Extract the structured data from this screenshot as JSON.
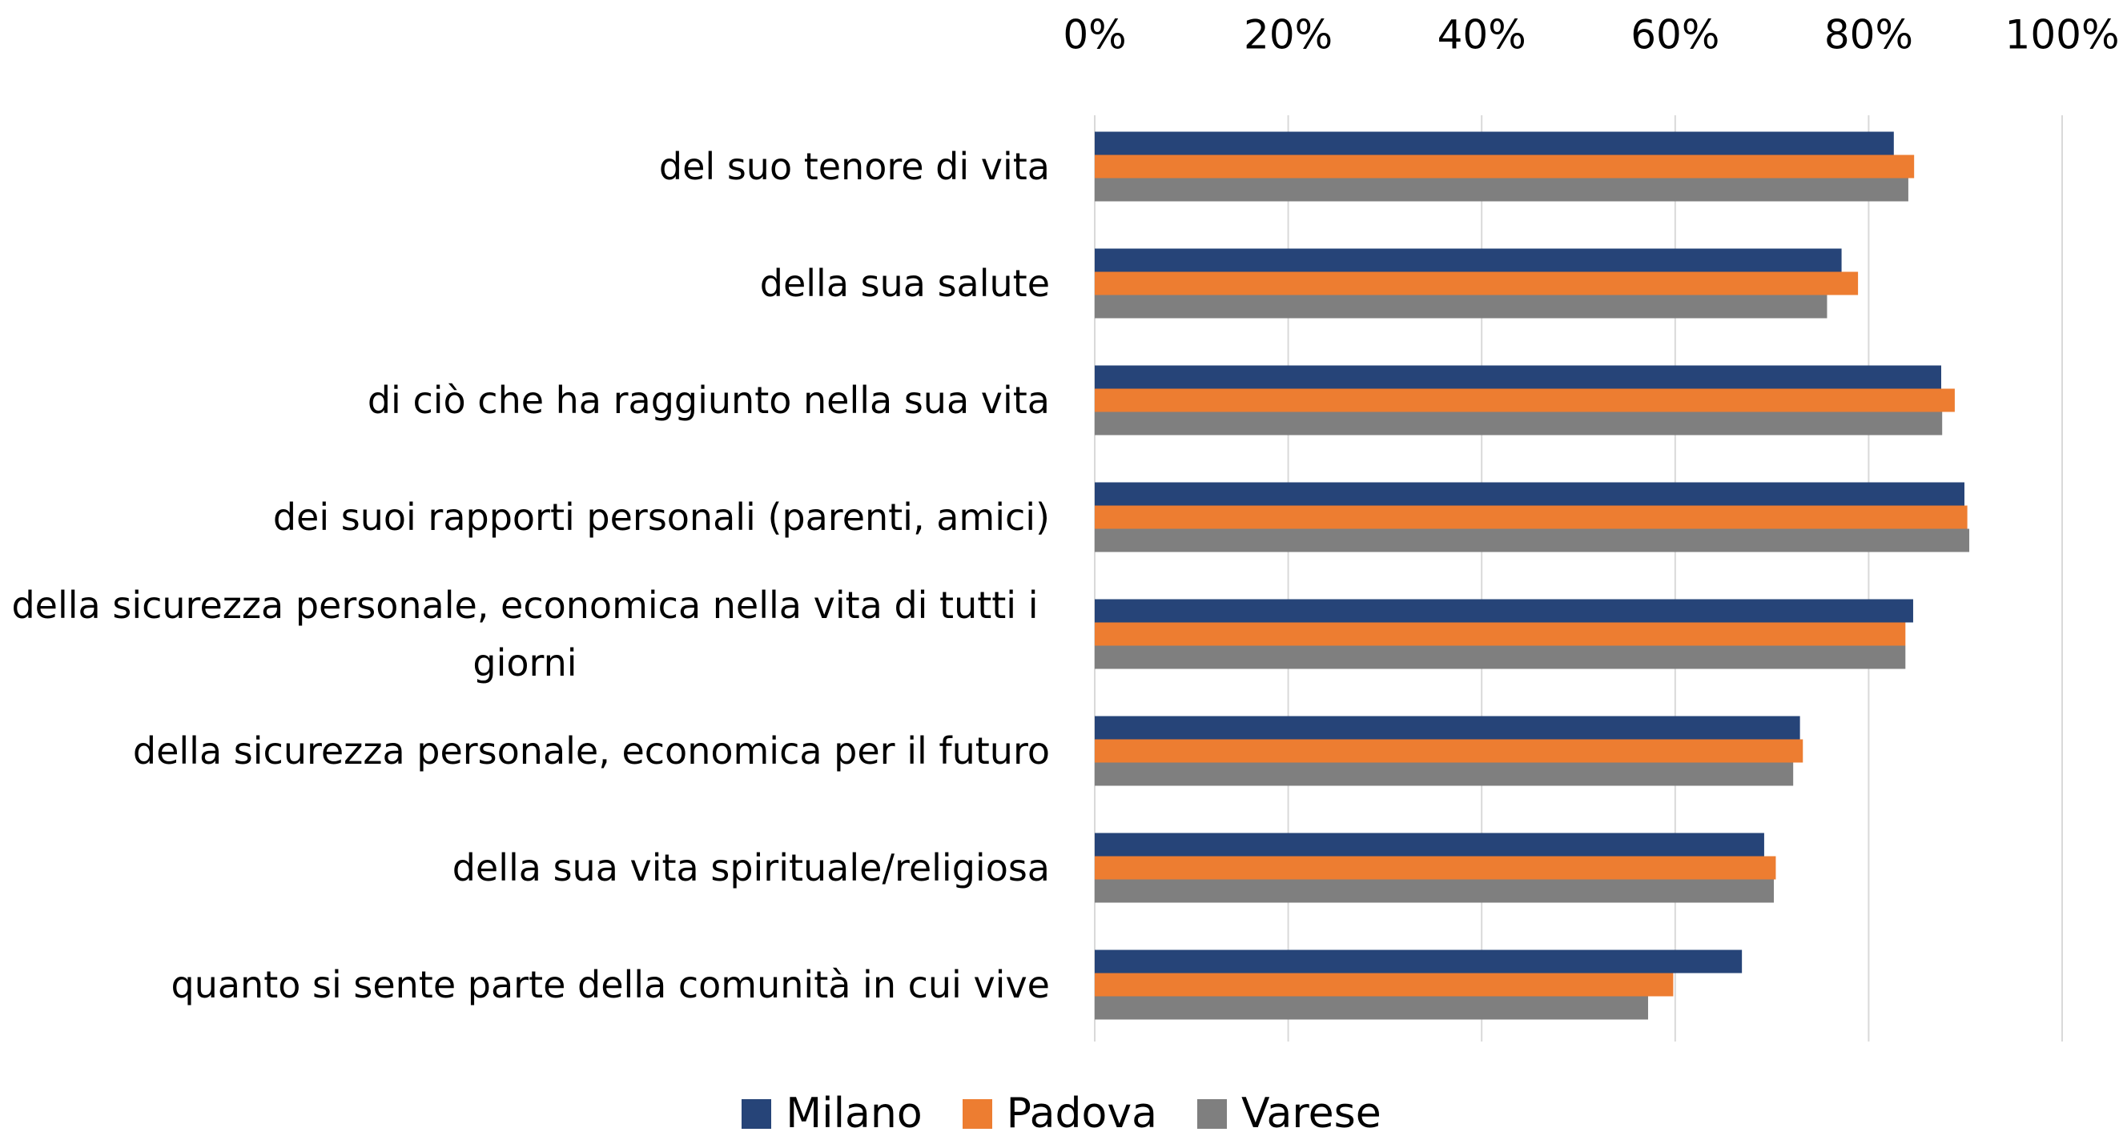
{
  "chart_data": {
    "type": "bar",
    "orientation": "horizontal",
    "categories": [
      "del suo tenore di vita",
      "della sua salute",
      "di ciò che ha raggiunto nella sua vita",
      "dei suoi rapporti personali (parenti, amici)",
      "della sicurezza personale, economica nella vita di tutti i giorni",
      "della sicurezza personale, economica per il futuro",
      "della sua vita spirituale/religiosa",
      "quanto si sente parte della comunità in cui vive"
    ],
    "series": [
      {
        "name": "Milano",
        "color": "#264478",
        "values": [
          82.6,
          77.2,
          87.5,
          89.9,
          84.6,
          72.9,
          69.2,
          66.9
        ]
      },
      {
        "name": "Padova",
        "color": "#ed7d31",
        "values": [
          84.7,
          78.9,
          88.9,
          90.2,
          83.8,
          73.2,
          70.4,
          59.8
        ]
      },
      {
        "name": "Varese",
        "color": "#7f7f7f",
        "values": [
          84.1,
          75.7,
          87.6,
          90.4,
          83.8,
          72.2,
          70.2,
          57.2
        ]
      }
    ],
    "xlim": [
      0,
      100
    ],
    "xticks": [
      {
        "value": 0,
        "label": "0%"
      },
      {
        "value": 20,
        "label": "20%"
      },
      {
        "value": 40,
        "label": "40%"
      },
      {
        "value": 60,
        "label": "60%"
      },
      {
        "value": 80,
        "label": "80%"
      },
      {
        "value": 100,
        "label": "100%"
      }
    ],
    "grid": true,
    "legend": "bottom"
  }
}
